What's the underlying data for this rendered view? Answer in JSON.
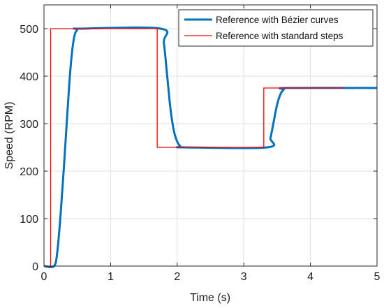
{
  "chart_data": {
    "type": "line",
    "xlabel": "Time (s)",
    "ylabel": "Speed (RPM)",
    "xlim": [
      0,
      5
    ],
    "ylim": [
      0,
      550
    ],
    "xticks": [
      0,
      1,
      2,
      3,
      4,
      5
    ],
    "yticks": [
      0,
      100,
      200,
      300,
      400,
      500
    ],
    "grid": true,
    "legend_position": "top-right",
    "series": [
      {
        "name": "Reference with Bézier curves",
        "color": "#0072BD",
        "style": "smooth",
        "points": [
          [
            0,
            0
          ],
          [
            0.15,
            0
          ],
          [
            0.2,
            30
          ],
          [
            0.25,
            110
          ],
          [
            0.3,
            210
          ],
          [
            0.35,
            320
          ],
          [
            0.4,
            420
          ],
          [
            0.45,
            480
          ],
          [
            0.5,
            498
          ],
          [
            0.55,
            500
          ],
          [
            1.75,
            500
          ],
          [
            1.8,
            470
          ],
          [
            1.85,
            400
          ],
          [
            1.9,
            330
          ],
          [
            1.95,
            285
          ],
          [
            2.0,
            262
          ],
          [
            2.05,
            252
          ],
          [
            2.1,
            250
          ],
          [
            3.35,
            250
          ],
          [
            3.4,
            270
          ],
          [
            3.45,
            305
          ],
          [
            3.5,
            340
          ],
          [
            3.55,
            362
          ],
          [
            3.6,
            372
          ],
          [
            3.65,
            375
          ],
          [
            5,
            375
          ]
        ]
      },
      {
        "name": "Reference with standard steps",
        "color": "#FF0000",
        "style": "step",
        "points": [
          [
            0,
            0
          ],
          [
            0.1,
            0
          ],
          [
            0.1,
            500
          ],
          [
            1.7,
            500
          ],
          [
            1.7,
            250
          ],
          [
            3.3,
            250
          ],
          [
            3.3,
            375
          ],
          [
            4.5,
            375
          ]
        ]
      }
    ]
  }
}
